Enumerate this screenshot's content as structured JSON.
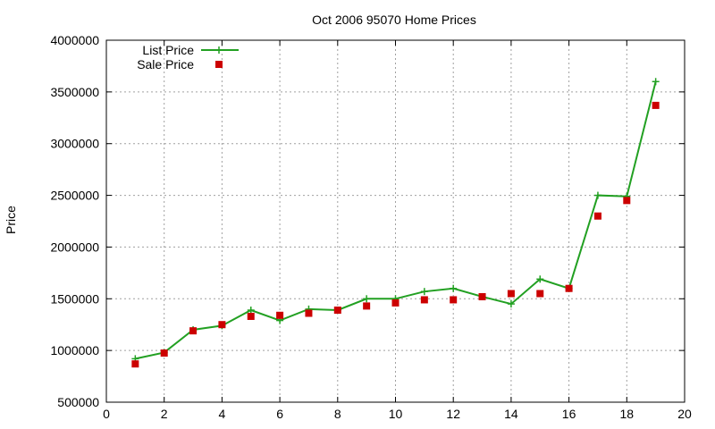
{
  "chart_data": {
    "type": "line",
    "title": "Oct 2006 95070 Home Prices",
    "xlabel": "",
    "ylabel": "Price",
    "xlim": [
      0,
      20
    ],
    "ylim": [
      500000,
      4000000
    ],
    "xticks": [
      0,
      2,
      4,
      6,
      8,
      10,
      12,
      14,
      16,
      18,
      20
    ],
    "yticks": [
      500000,
      1000000,
      1500000,
      2000000,
      2500000,
      3000000,
      3500000,
      4000000
    ],
    "grid": true,
    "legend_position": "top-left",
    "series": [
      {
        "name": "List Price",
        "style": "line-with-plus-markers",
        "color": "#22a022",
        "x": [
          1,
          2,
          3,
          4,
          5,
          6,
          7,
          8,
          9,
          10,
          11,
          12,
          13,
          14,
          15,
          16,
          17,
          18,
          19
        ],
        "y": [
          920000,
          980000,
          1200000,
          1240000,
          1390000,
          1290000,
          1400000,
          1390000,
          1500000,
          1500000,
          1570000,
          1600000,
          1520000,
          1450000,
          1690000,
          1600000,
          2500000,
          2490000,
          3600000
        ]
      },
      {
        "name": "Sale Price",
        "style": "square-markers",
        "color": "#cc0000",
        "x": [
          1,
          2,
          3,
          4,
          5,
          6,
          7,
          8,
          9,
          10,
          11,
          12,
          13,
          14,
          15,
          16,
          17,
          18,
          19
        ],
        "y": [
          870000,
          975000,
          1190000,
          1250000,
          1330000,
          1340000,
          1360000,
          1390000,
          1430000,
          1460000,
          1490000,
          1490000,
          1520000,
          1550000,
          1550000,
          1600000,
          2300000,
          2450000,
          3370000
        ]
      }
    ]
  }
}
